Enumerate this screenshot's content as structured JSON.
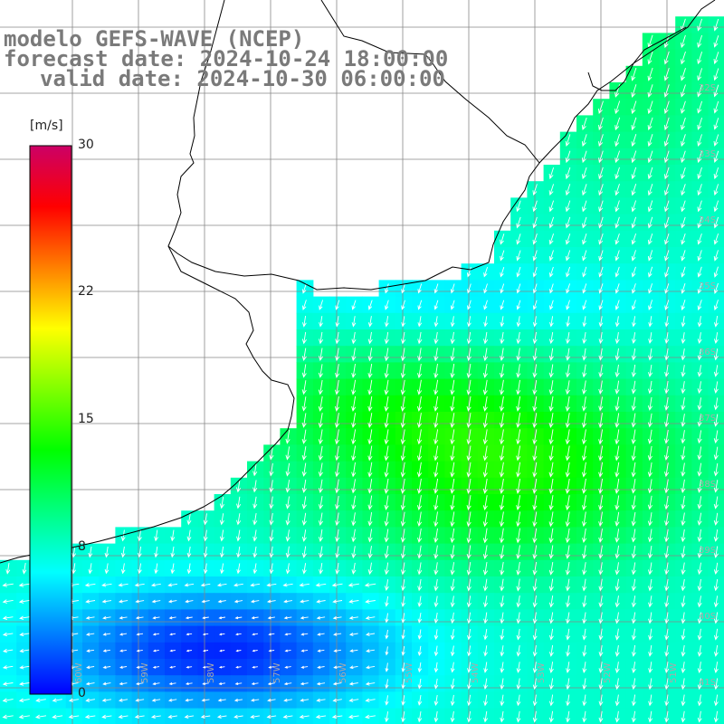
{
  "title": {
    "line1": "modelo GEFS-WAVE (NCEP)",
    "line2": "forecast date: 2024-10-24 18:00:00",
    "line3": "valid date: 2024-10-30 06:00:00"
  },
  "colorbar": {
    "unit": "[m/s]",
    "ticks": [
      "30",
      "22",
      "15",
      "8",
      "0"
    ],
    "tick_values": [
      30,
      22,
      15,
      8,
      0
    ],
    "min": 0,
    "max": 30,
    "colors": [
      "#0000ff",
      "#0080ff",
      "#00ffff",
      "#00ff80",
      "#00ff00",
      "#80ff00",
      "#ffff00",
      "#ff8000",
      "#ff0000",
      "#cc0066"
    ]
  },
  "map": {
    "lat_labels": [
      "32S",
      "33S",
      "34S",
      "35S",
      "36S",
      "37S",
      "38S",
      "39S",
      "40S",
      "41S"
    ],
    "lon_labels": [
      "60W",
      "59W",
      "58W",
      "57W",
      "56W",
      "55W",
      "54W",
      "53W",
      "52W",
      "51W"
    ],
    "land_color": "#ffffff",
    "coast_color": "#000000",
    "grid_color": "#888888",
    "arrow_color": "#ffffff"
  }
}
